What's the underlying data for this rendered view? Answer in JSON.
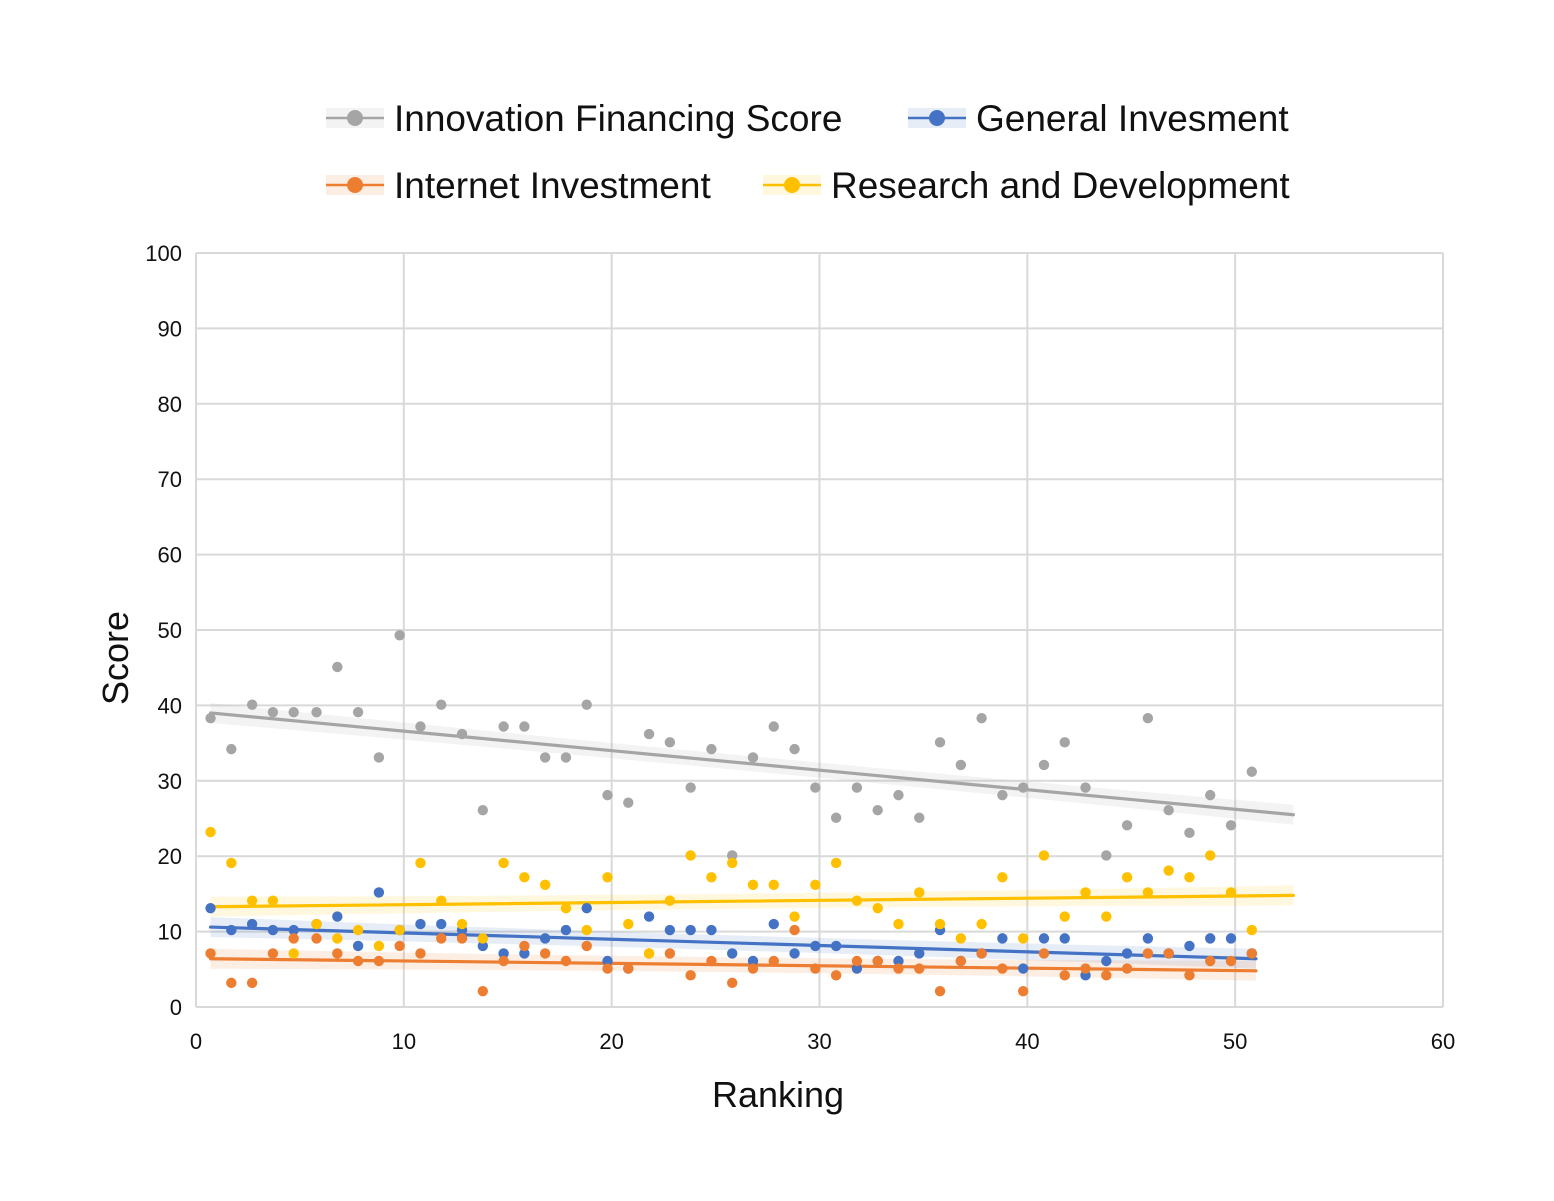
{
  "chart_data": {
    "type": "scatter",
    "xlabel": "Ranking",
    "ylabel": "Score",
    "xlim": [
      0,
      60
    ],
    "ylim": [
      0,
      100
    ],
    "xticks": [
      0,
      10,
      20,
      30,
      40,
      50,
      60
    ],
    "yticks": [
      0,
      10,
      20,
      30,
      40,
      50,
      60,
      70,
      80,
      90,
      100
    ],
    "grid": true,
    "legend_position": "top",
    "series": [
      {
        "name": "Innovation Financing Score",
        "color": "#a5a5a5",
        "trendline": "linear",
        "trend": [
          [
            0.7,
            39
          ],
          [
            52.8,
            25.5
          ]
        ],
        "points": [
          [
            0.7,
            38.3
          ],
          [
            1.7,
            34.2
          ],
          [
            2.7,
            40.1
          ],
          [
            3.7,
            39.1
          ],
          [
            4.7,
            39.1
          ],
          [
            5.8,
            39.1
          ],
          [
            6.8,
            45.1
          ],
          [
            7.8,
            39.1
          ],
          [
            8.8,
            33.1
          ],
          [
            9.8,
            49.3
          ],
          [
            10.8,
            37.2
          ],
          [
            11.8,
            40.1
          ],
          [
            12.8,
            36.2
          ],
          [
            13.8,
            26.1
          ],
          [
            14.8,
            37.2
          ],
          [
            15.8,
            37.2
          ],
          [
            16.8,
            33.1
          ],
          [
            17.8,
            33.1
          ],
          [
            18.8,
            40.1
          ],
          [
            19.8,
            28.1
          ],
          [
            20.8,
            27.1
          ],
          [
            21.8,
            36.2
          ],
          [
            22.8,
            35.1
          ],
          [
            23.8,
            29.1
          ],
          [
            24.8,
            34.2
          ],
          [
            25.8,
            20.1
          ],
          [
            26.8,
            33.1
          ],
          [
            27.8,
            37.2
          ],
          [
            28.8,
            34.2
          ],
          [
            29.8,
            29.1
          ],
          [
            30.8,
            25.1
          ],
          [
            31.8,
            29.1
          ],
          [
            32.8,
            26.1
          ],
          [
            33.8,
            28.1
          ],
          [
            34.8,
            25.1
          ],
          [
            35.8,
            35.1
          ],
          [
            36.8,
            32.1
          ],
          [
            37.8,
            38.3
          ],
          [
            38.8,
            28.1
          ],
          [
            39.8,
            29.1
          ],
          [
            40.8,
            32.1
          ],
          [
            41.8,
            35.1
          ],
          [
            42.8,
            29.1
          ],
          [
            43.8,
            20.1
          ],
          [
            44.8,
            24.1
          ],
          [
            45.8,
            38.3
          ],
          [
            46.8,
            26.1
          ],
          [
            47.8,
            23.1
          ],
          [
            48.8,
            28.1
          ],
          [
            49.8,
            24.1
          ],
          [
            50.8,
            31.2
          ]
        ]
      },
      {
        "name": "General Invesment",
        "color": "#4472c4",
        "trendline": "linear",
        "trend": [
          [
            0.7,
            10.6
          ],
          [
            51,
            6.4
          ]
        ],
        "points": [
          [
            0.7,
            13.1
          ],
          [
            1.7,
            10.2
          ],
          [
            2.7,
            11.0
          ],
          [
            3.7,
            10.2
          ],
          [
            4.7,
            10.2
          ],
          [
            5.8,
            11.0
          ],
          [
            6.8,
            12.0
          ],
          [
            7.8,
            8.1
          ],
          [
            8.8,
            15.2
          ],
          [
            9.8,
            10.2
          ],
          [
            10.8,
            11.0
          ],
          [
            11.8,
            11.0
          ],
          [
            12.8,
            10.2
          ],
          [
            13.8,
            8.1
          ],
          [
            14.8,
            7.1
          ],
          [
            15.8,
            7.1
          ],
          [
            16.8,
            9.1
          ],
          [
            17.8,
            10.2
          ],
          [
            18.8,
            13.1
          ],
          [
            19.8,
            6.1
          ],
          [
            20.8,
            5.1
          ],
          [
            21.8,
            12.0
          ],
          [
            22.8,
            10.2
          ],
          [
            23.8,
            10.2
          ],
          [
            24.8,
            10.2
          ],
          [
            25.8,
            7.1
          ],
          [
            26.8,
            6.1
          ],
          [
            27.8,
            11.0
          ],
          [
            28.8,
            7.1
          ],
          [
            29.8,
            8.1
          ],
          [
            30.8,
            8.1
          ],
          [
            31.8,
            5.1
          ],
          [
            32.8,
            6.1
          ],
          [
            33.8,
            6.1
          ],
          [
            34.8,
            7.1
          ],
          [
            35.8,
            10.2
          ],
          [
            36.8,
            6.1
          ],
          [
            37.8,
            7.1
          ],
          [
            38.8,
            9.1
          ],
          [
            39.8,
            5.1
          ],
          [
            40.8,
            9.1
          ],
          [
            41.8,
            9.1
          ],
          [
            42.8,
            4.2
          ],
          [
            43.8,
            6.1
          ],
          [
            44.8,
            7.1
          ],
          [
            45.8,
            9.1
          ],
          [
            46.8,
            7.1
          ],
          [
            47.8,
            8.1
          ],
          [
            48.8,
            9.1
          ],
          [
            49.8,
            9.1
          ],
          [
            50.8,
            7.1
          ]
        ]
      },
      {
        "name": "Internet Investment",
        "color": "#ed7d31",
        "trendline": "linear",
        "trend": [
          [
            0.7,
            6.4
          ],
          [
            51,
            4.8
          ]
        ],
        "points": [
          [
            0.7,
            7.1
          ],
          [
            1.7,
            3.2
          ],
          [
            2.7,
            3.2
          ],
          [
            3.7,
            7.1
          ],
          [
            4.7,
            9.1
          ],
          [
            5.8,
            9.1
          ],
          [
            6.8,
            7.1
          ],
          [
            7.8,
            6.1
          ],
          [
            8.8,
            6.1
          ],
          [
            9.8,
            8.1
          ],
          [
            10.8,
            7.1
          ],
          [
            11.8,
            9.1
          ],
          [
            12.8,
            9.1
          ],
          [
            13.8,
            2.1
          ],
          [
            14.8,
            6.1
          ],
          [
            15.8,
            8.1
          ],
          [
            16.8,
            7.1
          ],
          [
            17.8,
            6.1
          ],
          [
            18.8,
            8.1
          ],
          [
            19.8,
            5.1
          ],
          [
            20.8,
            5.1
          ],
          [
            21.8,
            7.1
          ],
          [
            22.8,
            7.1
          ],
          [
            23.8,
            4.2
          ],
          [
            24.8,
            6.1
          ],
          [
            25.8,
            3.2
          ],
          [
            26.8,
            5.1
          ],
          [
            27.8,
            6.1
          ],
          [
            28.8,
            10.2
          ],
          [
            29.8,
            5.1
          ],
          [
            30.8,
            4.2
          ],
          [
            31.8,
            6.1
          ],
          [
            32.8,
            6.1
          ],
          [
            33.8,
            5.1
          ],
          [
            34.8,
            5.1
          ],
          [
            35.8,
            2.1
          ],
          [
            36.8,
            6.1
          ],
          [
            37.8,
            7.1
          ],
          [
            38.8,
            5.1
          ],
          [
            39.8,
            2.1
          ],
          [
            40.8,
            7.1
          ],
          [
            41.8,
            4.2
          ],
          [
            42.8,
            5.1
          ],
          [
            43.8,
            4.2
          ],
          [
            44.8,
            5.1
          ],
          [
            45.8,
            7.1
          ],
          [
            46.8,
            7.1
          ],
          [
            47.8,
            4.2
          ],
          [
            48.8,
            6.1
          ],
          [
            49.8,
            6.1
          ],
          [
            50.8,
            7.1
          ]
        ]
      },
      {
        "name": "Research and Development",
        "color": "#ffc000",
        "trendline": "linear",
        "trend": [
          [
            0.7,
            13.3
          ],
          [
            52.8,
            14.8
          ]
        ],
        "points": [
          [
            0.7,
            23.2
          ],
          [
            1.7,
            19.1
          ],
          [
            2.7,
            14.1
          ],
          [
            3.7,
            14.1
          ],
          [
            4.7,
            7.1
          ],
          [
            5.8,
            11.0
          ],
          [
            6.8,
            9.1
          ],
          [
            7.8,
            10.2
          ],
          [
            8.8,
            8.1
          ],
          [
            9.8,
            10.2
          ],
          [
            10.8,
            19.1
          ],
          [
            11.8,
            14.1
          ],
          [
            12.8,
            11.0
          ],
          [
            13.8,
            9.1
          ],
          [
            14.8,
            19.1
          ],
          [
            15.8,
            17.2
          ],
          [
            16.8,
            16.2
          ],
          [
            17.8,
            13.1
          ],
          [
            18.8,
            10.2
          ],
          [
            19.8,
            17.2
          ],
          [
            20.8,
            11.0
          ],
          [
            21.8,
            7.1
          ],
          [
            22.8,
            14.1
          ],
          [
            23.8,
            20.1
          ],
          [
            24.8,
            17.2
          ],
          [
            25.8,
            19.1
          ],
          [
            26.8,
            16.2
          ],
          [
            27.8,
            16.2
          ],
          [
            28.8,
            12.0
          ],
          [
            29.8,
            16.2
          ],
          [
            30.8,
            19.1
          ],
          [
            31.8,
            14.1
          ],
          [
            32.8,
            13.1
          ],
          [
            33.8,
            11.0
          ],
          [
            34.8,
            15.2
          ],
          [
            35.8,
            11.0
          ],
          [
            36.8,
            9.1
          ],
          [
            37.8,
            11.0
          ],
          [
            38.8,
            17.2
          ],
          [
            39.8,
            9.1
          ],
          [
            40.8,
            20.1
          ],
          [
            41.8,
            12.0
          ],
          [
            42.8,
            15.2
          ],
          [
            43.8,
            12.0
          ],
          [
            44.8,
            17.2
          ],
          [
            45.8,
            15.2
          ],
          [
            46.8,
            18.1
          ],
          [
            47.8,
            17.2
          ],
          [
            48.8,
            20.1
          ],
          [
            49.8,
            15.2
          ],
          [
            50.8,
            10.2
          ]
        ]
      }
    ]
  }
}
